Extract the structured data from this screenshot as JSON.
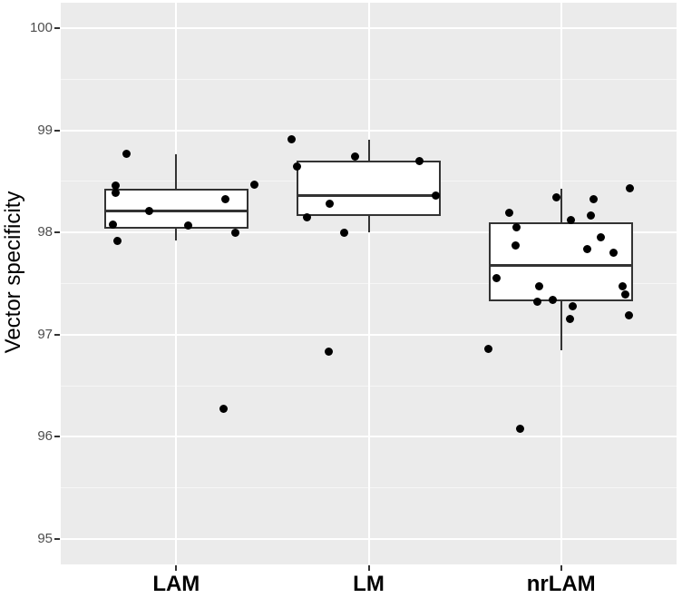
{
  "chart_data": {
    "type": "boxplot",
    "title": "",
    "xlabel": "",
    "ylabel": "Vector specificity",
    "categories": [
      "LAM",
      "LM",
      "nrLAM"
    ],
    "ylim": [
      94.75,
      100.25
    ],
    "yticks": [
      100,
      99,
      98,
      97,
      96,
      95
    ],
    "yticks_minor": [
      99.5,
      98.5,
      97.5,
      96.5,
      95.5
    ],
    "grid": "on",
    "legend_position": "none",
    "boxes": [
      {
        "category": "LAM",
        "whisker_low": 97.92,
        "q1": 98.04,
        "median": 98.21,
        "q3": 98.43,
        "whisker_high": 98.77
      },
      {
        "category": "LM",
        "whisker_low": 98.0,
        "q1": 98.16,
        "median": 98.36,
        "q3": 98.7,
        "whisker_high": 98.91
      },
      {
        "category": "nrLAM",
        "whisker_low": 96.85,
        "q1": 97.33,
        "median": 97.68,
        "q3": 98.1,
        "whisker_high": 98.43
      }
    ],
    "series": [
      {
        "name": "LAM",
        "values": [
          98.77,
          98.47,
          98.46,
          98.39,
          98.33,
          98.21,
          98.08,
          98.07,
          98.0,
          97.92,
          96.27
        ]
      },
      {
        "name": "LM",
        "values": [
          98.91,
          98.74,
          98.7,
          98.65,
          98.36,
          98.28,
          98.15,
          98.0,
          96.83
        ]
      },
      {
        "name": "nrLAM",
        "values": [
          98.43,
          98.34,
          98.33,
          98.19,
          98.17,
          98.12,
          98.05,
          97.95,
          97.87,
          97.84,
          97.8,
          97.55,
          97.47,
          97.47,
          97.39,
          97.34,
          97.32,
          97.28,
          97.19,
          97.15,
          96.86,
          96.08
        ]
      }
    ],
    "points": [
      {
        "cat": 0,
        "dx": -55,
        "y": 98.77
      },
      {
        "cat": 0,
        "dx": -67,
        "y": 98.46
      },
      {
        "cat": 0,
        "dx": -67,
        "y": 98.39
      },
      {
        "cat": 0,
        "dx": 86,
        "y": 98.47
      },
      {
        "cat": 0,
        "dx": 54,
        "y": 98.33
      },
      {
        "cat": 0,
        "dx": -30,
        "y": 98.21
      },
      {
        "cat": 0,
        "dx": -70,
        "y": 98.08
      },
      {
        "cat": 0,
        "dx": 13,
        "y": 98.07
      },
      {
        "cat": 0,
        "dx": 65,
        "y": 98.0
      },
      {
        "cat": 0,
        "dx": -65,
        "y": 97.92
      },
      {
        "cat": 0,
        "dx": 52,
        "y": 96.27
      },
      {
        "cat": 1,
        "dx": -85,
        "y": 98.91
      },
      {
        "cat": 1,
        "dx": -15,
        "y": 98.74
      },
      {
        "cat": 1,
        "dx": 56,
        "y": 98.7
      },
      {
        "cat": 1,
        "dx": -79,
        "y": 98.65
      },
      {
        "cat": 1,
        "dx": 74,
        "y": 98.36
      },
      {
        "cat": 1,
        "dx": -43,
        "y": 98.28
      },
      {
        "cat": 1,
        "dx": -68,
        "y": 98.15
      },
      {
        "cat": 1,
        "dx": -27,
        "y": 98.0
      },
      {
        "cat": 1,
        "dx": -44,
        "y": 96.83
      },
      {
        "cat": 2,
        "dx": 76,
        "y": 98.43
      },
      {
        "cat": 2,
        "dx": -5,
        "y": 98.34
      },
      {
        "cat": 2,
        "dx": 36,
        "y": 98.33
      },
      {
        "cat": 2,
        "dx": -57,
        "y": 98.19
      },
      {
        "cat": 2,
        "dx": 33,
        "y": 98.17
      },
      {
        "cat": 2,
        "dx": 11,
        "y": 98.12
      },
      {
        "cat": 2,
        "dx": -49,
        "y": 98.05
      },
      {
        "cat": 2,
        "dx": 44,
        "y": 97.95
      },
      {
        "cat": 2,
        "dx": -50,
        "y": 97.87
      },
      {
        "cat": 2,
        "dx": 29,
        "y": 97.84
      },
      {
        "cat": 2,
        "dx": 58,
        "y": 97.8
      },
      {
        "cat": 2,
        "dx": -71,
        "y": 97.55
      },
      {
        "cat": 2,
        "dx": -24,
        "y": 97.47
      },
      {
        "cat": 2,
        "dx": 68,
        "y": 97.47
      },
      {
        "cat": 2,
        "dx": 71,
        "y": 97.39
      },
      {
        "cat": 2,
        "dx": -9,
        "y": 97.34
      },
      {
        "cat": 2,
        "dx": -26,
        "y": 97.32
      },
      {
        "cat": 2,
        "dx": 13,
        "y": 97.28
      },
      {
        "cat": 2,
        "dx": 75,
        "y": 97.19
      },
      {
        "cat": 2,
        "dx": 10,
        "y": 97.15
      },
      {
        "cat": 2,
        "dx": -80,
        "y": 96.86
      },
      {
        "cat": 2,
        "dx": -45,
        "y": 96.08
      }
    ],
    "colors": {
      "panel_background": "#EBEBEB",
      "grid_major": "#FFFFFF",
      "grid_minor": "#F5F5F5",
      "box_outline": "#333333",
      "box_fill": "#FFFFFF",
      "point": "#000000",
      "tick_text": "#4D4D4D",
      "axis_title": "#000000"
    }
  }
}
